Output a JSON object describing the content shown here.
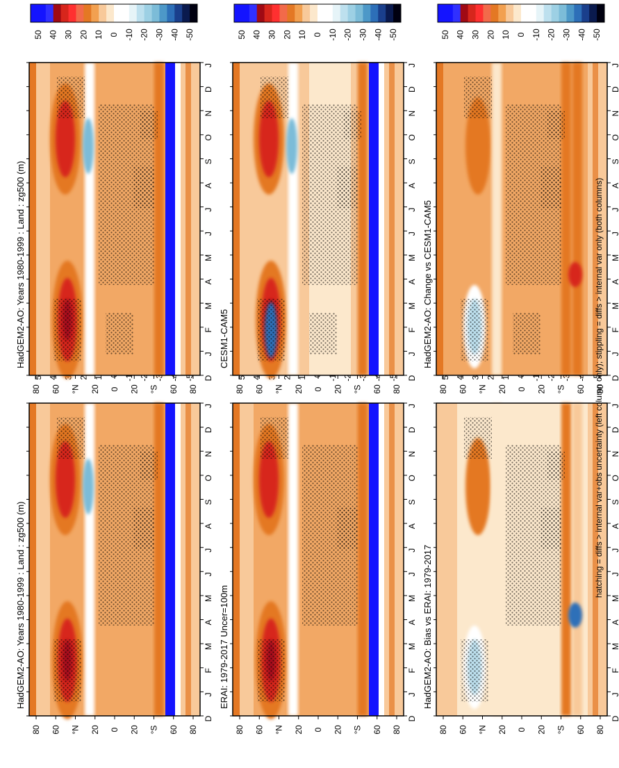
{
  "footer_note": "hatching = diffs > internal var+obs uncertainty (left column only); stippling = diffs > internal var only (both columns)",
  "colors": {
    "scale": [
      "#000018",
      "#0a1a6e",
      "#1a2f9c",
      "#2a4fbf",
      "#3f72c8",
      "#5b93d1",
      "#7fb0db",
      "#a9cde8",
      "#d2e8f4",
      "#eef7fb",
      "#ffffff",
      "#fdf1dd",
      "#fbd9a8",
      "#f7b86f",
      "#f2963e",
      "#e46d1e",
      "#d4451c",
      "#c02220",
      "#a50f1c",
      "#ff2020",
      "#1414ff"
    ]
  },
  "chart_data": [
    {
      "type": "heatmap",
      "title": "HadGEM2-AO: Years 1980-1999 : Land : zg500 (m)",
      "months": [
        "D",
        "J",
        "F",
        "M",
        "A",
        "M",
        "J",
        "J",
        "A",
        "S",
        "O",
        "N",
        "D",
        "J"
      ],
      "lat_ticks": [
        "80",
        "60",
        "°N",
        "20",
        "0",
        "20",
        "°S",
        "60",
        "80"
      ],
      "colorbar_ticks": [
        "50",
        "40",
        "30",
        "20",
        "10",
        "0",
        "-10",
        "-20",
        "-30",
        "-40",
        "-50"
      ],
      "stippled_regions": 5
    },
    {
      "type": "heatmap",
      "title": "HadGEM2-AO: Years 1980-1999 : Land : zg500 (m)",
      "months": [
        "D",
        "J",
        "F",
        "M",
        "A",
        "M",
        "J",
        "J",
        "A",
        "S",
        "O",
        "N",
        "D",
        "J"
      ],
      "lat_ticks": [
        "80",
        "60",
        "°N",
        "20",
        "0",
        "20",
        "°S",
        "60",
        "80"
      ],
      "colorbar_ticks": [
        "50",
        "40",
        "30",
        "20",
        "10",
        "0",
        "-10",
        "-20",
        "-30",
        "-40",
        "-50"
      ],
      "stippled_regions": 6
    },
    {
      "type": "heatmap",
      "title": "ERAI: 1979-2017 Uncer=100m",
      "months": [
        "D",
        "J",
        "F",
        "M",
        "A",
        "M",
        "J",
        "J",
        "A",
        "S",
        "O",
        "N",
        "D",
        "J"
      ],
      "lat_ticks": [
        "80",
        "60",
        "°N",
        "20",
        "0",
        "20",
        "°S",
        "60",
        "80"
      ],
      "colorbar_ticks": [
        "50",
        "40",
        "30",
        "20",
        "10",
        "0",
        "-10",
        "-20",
        "-30",
        "-40",
        "-50"
      ],
      "stippled_regions": 4
    },
    {
      "type": "heatmap",
      "title": "CESM1-CAM5",
      "months": [
        "D",
        "J",
        "F",
        "M",
        "A",
        "M",
        "J",
        "J",
        "A",
        "S",
        "O",
        "N",
        "D",
        "J"
      ],
      "lat_ticks": [
        "80",
        "60",
        "°N",
        "20",
        "0",
        "20",
        "°S",
        "60",
        "80"
      ],
      "colorbar_ticks": [
        "50",
        "40",
        "30",
        "20",
        "10",
        "0",
        "-10",
        "-20",
        "-30",
        "-40",
        "-50"
      ],
      "stippled_regions": 6
    },
    {
      "type": "heatmap",
      "title": "HadGEM2-AO: Bias vs ERAI: 1979-2017",
      "months": [
        "D",
        "J",
        "F",
        "M",
        "A",
        "M",
        "J",
        "J",
        "A",
        "S",
        "O",
        "N",
        "D",
        "J"
      ],
      "lat_ticks": [
        "80",
        "60",
        "°N",
        "20",
        "0",
        "20",
        "°S",
        "60",
        "80"
      ],
      "colorbar_ticks": [
        "50",
        "40",
        "30",
        "20",
        "10",
        "0",
        "-10",
        "-20",
        "-30",
        "-40",
        "-50"
      ],
      "stippled_regions": 5
    },
    {
      "type": "heatmap",
      "title": "HadGEM2-AO: Change vs CESM1-CAM5",
      "months": [
        "D",
        "J",
        "F",
        "M",
        "A",
        "M",
        "J",
        "J",
        "A",
        "S",
        "O",
        "N",
        "D",
        "J"
      ],
      "lat_ticks": [
        "80",
        "60",
        "°N",
        "20",
        "0",
        "20",
        "°S",
        "60",
        "80"
      ],
      "colorbar_ticks": [
        "50",
        "40",
        "30",
        "20",
        "10",
        "0",
        "-10",
        "-20",
        "-30",
        "-40",
        "-50"
      ],
      "stippled_regions": 6
    }
  ]
}
